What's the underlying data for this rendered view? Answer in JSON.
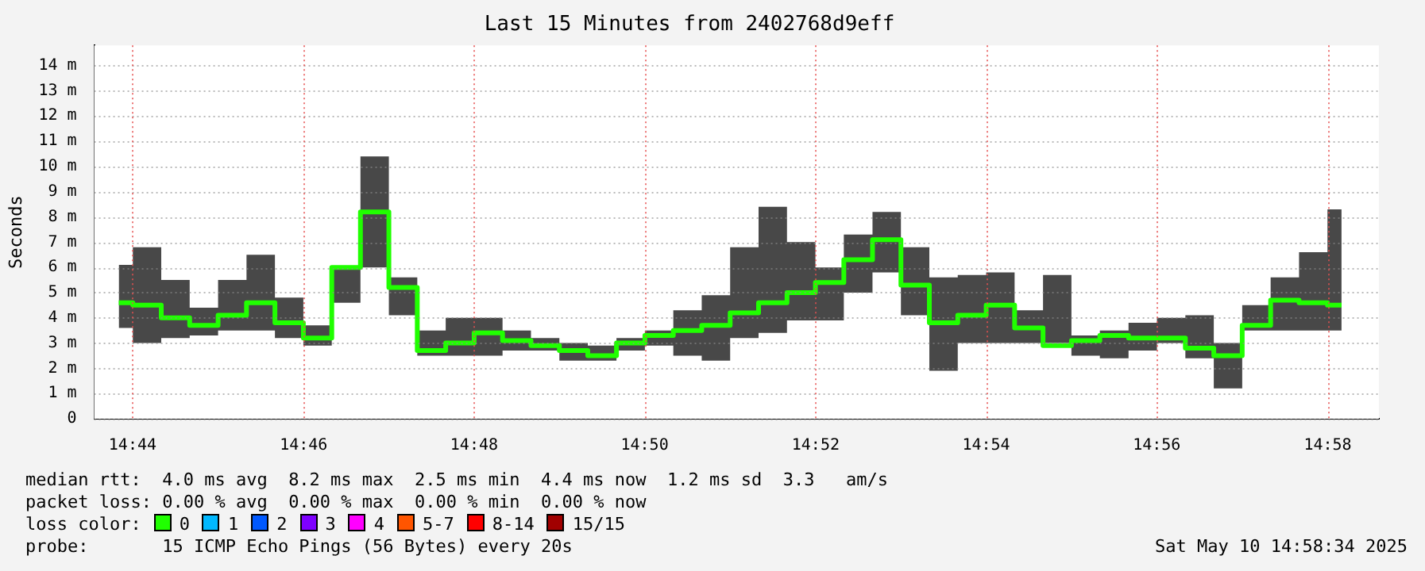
{
  "chart_data": {
    "type": "step",
    "title": "Last 15 Minutes from 2402768d9eff",
    "ylabel": "Seconds",
    "legend_title": "loss color:",
    "x": [
      14.7306,
      14.7361,
      14.7417,
      14.7472,
      14.7528,
      14.7583,
      14.7639,
      14.7694,
      14.775,
      14.7806,
      14.7861,
      14.7917,
      14.7972,
      14.8028,
      14.8083,
      14.8139,
      14.8194,
      14.825,
      14.8306,
      14.8361,
      14.8417,
      14.8472,
      14.8528,
      14.8583,
      14.8639,
      14.8694,
      14.875,
      14.8806,
      14.8861,
      14.8917,
      14.8972,
      14.9028,
      14.9083,
      14.9139,
      14.9194,
      14.925,
      14.9306,
      14.9361,
      14.9417,
      14.9472,
      14.9528,
      14.9583,
      14.9639,
      14.9694
    ],
    "series": [
      {
        "name": "0",
        "color": "#20ff00",
        "values": [
          4.6,
          4.5,
          4.0,
          3.7,
          4.1,
          4.6,
          3.8,
          3.2,
          6.0,
          8.2,
          5.2,
          2.7,
          3.0,
          3.4,
          3.1,
          2.9,
          2.7,
          2.5,
          3.0,
          3.3,
          3.5,
          3.7,
          4.2,
          4.6,
          5.0,
          5.4,
          6.3,
          7.1,
          5.3,
          3.8,
          4.1,
          4.5,
          3.6,
          2.9,
          3.1,
          3.3,
          3.2,
          3.2,
          2.8,
          2.5,
          3.7,
          4.7,
          4.6,
          4.5
        ],
        "lower": [
          3.6,
          3.0,
          3.2,
          3.3,
          3.5,
          3.5,
          3.2,
          2.9,
          4.6,
          6.0,
          4.1,
          2.5,
          2.5,
          2.5,
          2.7,
          2.7,
          2.3,
          2.3,
          2.7,
          2.9,
          2.5,
          2.3,
          3.2,
          3.4,
          3.9,
          3.9,
          5.0,
          5.8,
          4.1,
          1.9,
          3.0,
          3.0,
          3.0,
          3.0,
          2.5,
          2.4,
          2.7,
          3.0,
          2.4,
          1.2,
          3.5,
          3.5,
          3.5,
          3.5
        ],
        "upper": [
          6.1,
          6.8,
          5.5,
          4.4,
          5.5,
          6.5,
          4.8,
          3.7,
          6.0,
          10.4,
          5.6,
          3.5,
          4.0,
          4.0,
          3.5,
          3.2,
          3.0,
          2.9,
          3.2,
          3.5,
          4.3,
          4.9,
          6.8,
          8.4,
          7.0,
          6.0,
          7.3,
          8.2,
          6.8,
          5.6,
          5.7,
          5.8,
          4.3,
          5.7,
          3.3,
          3.5,
          3.8,
          4.0,
          4.1,
          3.0,
          4.5,
          5.6,
          6.6,
          8.3
        ]
      },
      {
        "name": "1",
        "color": "#00b8ff",
        "values": [
          null,
          null,
          null,
          null,
          null,
          null,
          null,
          null,
          null,
          null,
          null,
          null,
          null,
          null,
          null,
          null,
          null,
          null,
          null,
          null,
          null,
          null,
          null,
          null,
          null,
          null,
          null,
          null,
          null,
          null,
          null,
          null,
          null,
          null,
          null,
          null,
          null,
          null,
          null,
          null,
          null,
          null,
          null,
          null
        ]
      },
      {
        "name": "2",
        "color": "#0059ff",
        "values": [
          null,
          null,
          null,
          null,
          null,
          null,
          null,
          null,
          null,
          null,
          null,
          null,
          null,
          null,
          null,
          null,
          null,
          null,
          null,
          null,
          null,
          null,
          null,
          null,
          null,
          null,
          null,
          null,
          null,
          null,
          null,
          null,
          null,
          null,
          null,
          null,
          null,
          null,
          null,
          null,
          null,
          null,
          null,
          null
        ]
      },
      {
        "name": "3",
        "color": "#7e00ff",
        "values": [
          null,
          null,
          null,
          null,
          null,
          null,
          null,
          null,
          null,
          null,
          null,
          null,
          null,
          null,
          null,
          null,
          null,
          null,
          null,
          null,
          null,
          null,
          null,
          null,
          null,
          null,
          null,
          null,
          null,
          null,
          null,
          null,
          null,
          null,
          null,
          null,
          null,
          null,
          null,
          null,
          null,
          null,
          null,
          null
        ]
      },
      {
        "name": "4",
        "color": "#ff00ff",
        "values": [
          null,
          null,
          null,
          null,
          null,
          null,
          null,
          null,
          null,
          null,
          null,
          null,
          null,
          null,
          null,
          null,
          null,
          null,
          null,
          null,
          null,
          null,
          null,
          null,
          null,
          null,
          null,
          null,
          null,
          null,
          null,
          null,
          null,
          null,
          null,
          null,
          null,
          null,
          null,
          null,
          null,
          null,
          null,
          null
        ]
      },
      {
        "name": "5-7",
        "color": "#ff5500",
        "values": [
          null,
          null,
          null,
          null,
          null,
          null,
          null,
          null,
          null,
          null,
          null,
          null,
          null,
          null,
          null,
          null,
          null,
          null,
          null,
          null,
          null,
          null,
          null,
          null,
          null,
          null,
          null,
          null,
          null,
          null,
          null,
          null,
          null,
          null,
          null,
          null,
          null,
          null,
          null,
          null,
          null,
          null,
          null,
          null
        ]
      },
      {
        "name": "8-14",
        "color": "#ff0000",
        "values": [
          null,
          null,
          null,
          null,
          null,
          null,
          null,
          null,
          null,
          null,
          null,
          null,
          null,
          null,
          null,
          null,
          null,
          null,
          null,
          null,
          null,
          null,
          null,
          null,
          null,
          null,
          null,
          null,
          null,
          null,
          null,
          null,
          null,
          null,
          null,
          null,
          null,
          null,
          null,
          null,
          null,
          null,
          null,
          null
        ]
      },
      {
        "name": "15/15",
        "color": "#a10000",
        "values": [
          null,
          null,
          null,
          null,
          null,
          null,
          null,
          null,
          null,
          null,
          null,
          null,
          null,
          null,
          null,
          null,
          null,
          null,
          null,
          null,
          null,
          null,
          null,
          null,
          null,
          null,
          null,
          null,
          null,
          null,
          null,
          null,
          null,
          null,
          null,
          null,
          null,
          null,
          null,
          null,
          null,
          null,
          null,
          null
        ]
      }
    ],
    "xlim": [
      14.7258,
      14.9767
    ],
    "xticks": [
      {
        "value": 14.7333,
        "label": "14:44"
      },
      {
        "value": 14.7667,
        "label": "14:46"
      },
      {
        "value": 14.8,
        "label": "14:48"
      },
      {
        "value": 14.8333,
        "label": "14:50"
      },
      {
        "value": 14.8667,
        "label": "14:52"
      },
      {
        "value": 14.9,
        "label": "14:54"
      },
      {
        "value": 14.9333,
        "label": "14:56"
      },
      {
        "value": 14.9667,
        "label": "14:58"
      }
    ],
    "ylim": [
      0,
      14.8
    ],
    "yticks": [
      0,
      {
        "value": 1,
        "label": "1 m"
      },
      {
        "value": 2,
        "label": "2 m"
      },
      {
        "value": 3,
        "label": "3 m"
      },
      {
        "value": 4,
        "label": "4 m"
      },
      {
        "value": 5,
        "label": "5 m"
      },
      {
        "value": 6,
        "label": "6 m"
      },
      {
        "value": 7,
        "label": "7 m"
      },
      {
        "value": 8,
        "label": "8 m"
      },
      {
        "value": 9,
        "label": "9 m"
      },
      {
        "value": 10,
        "label": "10 m"
      },
      {
        "value": 11,
        "label": "11 m"
      },
      {
        "value": 12,
        "label": "12 m"
      },
      {
        "value": 13,
        "label": "13 m"
      },
      {
        "value": 14,
        "label": "14 m"
      }
    ],
    "grid": true,
    "legend": "bottom left",
    "marker": "none",
    "line_style": "solid",
    "annotations": [
      "median rtt:  4.0 ms avg  8.2 ms max  2.5 ms min  4.4 ms now  1.2 ms sd  3.3   am/s",
      "packet loss: 0.00 % avg  0.00 % max  0.00 % min  0.00 % now",
      "probe:       15 ICMP Echo Pings (56 Bytes) every 20s",
      "Sat May 10 14:58:34 2025"
    ]
  }
}
